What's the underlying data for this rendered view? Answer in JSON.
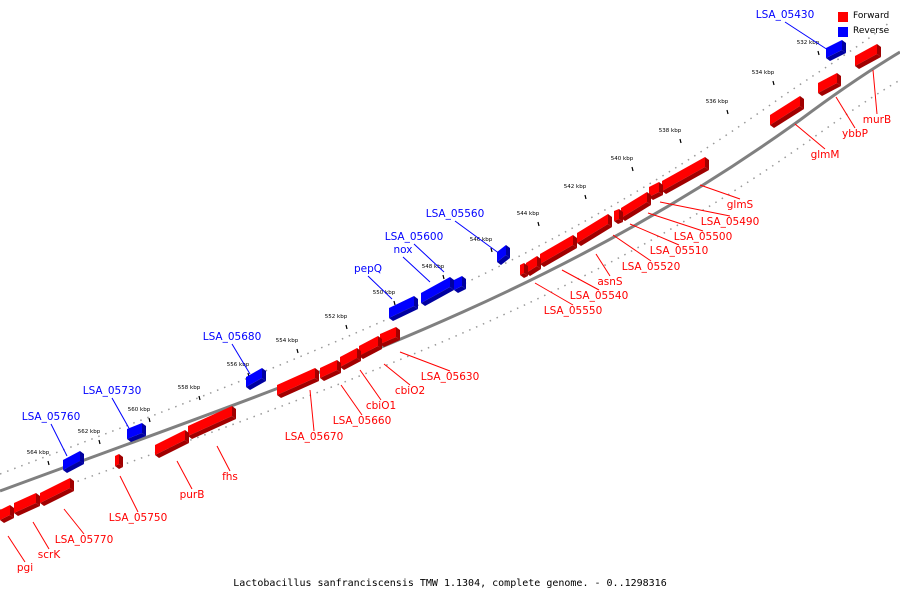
{
  "caption": "Lactobacillus sanfranciscensis TMW 1.1304, complete genome. - 0..1298316",
  "legend": [
    {
      "label": "Forward",
      "color": "#ff0000"
    },
    {
      "label": "Reverse",
      "color": "#0000ff"
    }
  ],
  "colors": {
    "forward": "#ff0000",
    "reverse": "#0000ff",
    "backbone": "#808080"
  },
  "ticks": [
    "532 kbp",
    "534 kbp",
    "536 kbp",
    "538 kbp",
    "540 kbp",
    "542 kbp",
    "544 kbp",
    "546 kbp",
    "548 kbp",
    "550 kbp",
    "552 kbp",
    "554 kbp",
    "556 kbp",
    "558 kbp",
    "560 kbp",
    "562 kbp",
    "564 kbp"
  ],
  "genes_forward": [
    "murB",
    "ybbP",
    "glmM",
    "glmS",
    "LSA_05490",
    "LSA_05500",
    "LSA_05510",
    "LSA_05520",
    "asnS",
    "LSA_05540",
    "LSA_05550",
    "LSA_05630",
    "cbiO2",
    "cbiO1",
    "LSA_05660",
    "LSA_05670",
    "fhs",
    "purB",
    "LSA_05750",
    "LSA_05770",
    "scrK",
    "pgi"
  ],
  "genes_reverse": [
    "LSA_05430",
    "LSA_05560",
    "LSA_05600",
    "nox",
    "pepQ",
    "LSA_05680",
    "LSA_05730",
    "LSA_05760"
  ]
}
